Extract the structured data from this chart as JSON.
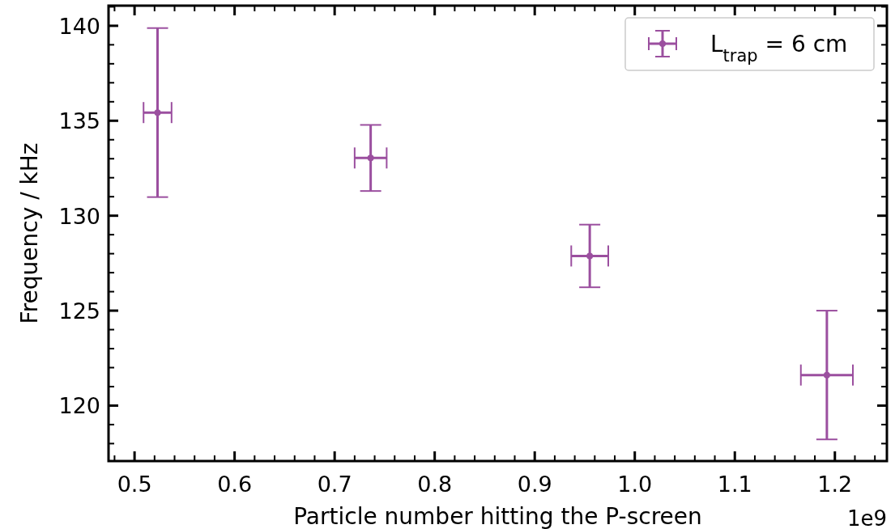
{
  "chart_data": {
    "type": "scatter",
    "xlabel": "Particle number hitting the P-screen",
    "ylabel": "Frequency / kHz",
    "annotations": [
      "1e9"
    ],
    "x": [
      0.523,
      0.736,
      0.955,
      1.192
    ],
    "series": [
      {
        "name": "L$_{trap}$ = 6 cm",
        "color": "#9b4f9f",
        "values": [
          135.43,
          133.04,
          127.88,
          121.61
        ],
        "errors": [
          4.45,
          1.74,
          1.65,
          3.39
        ],
        "xerrors": [
          0.014,
          0.016,
          0.0185,
          0.026
        ]
      }
    ],
    "xlim": [
      0.474,
      1.252
    ],
    "ylim": [
      117.08,
      141.06
    ],
    "xticks": [
      {
        "value": 0.48,
        "label": null
      },
      0.5,
      {
        "value": 0.52,
        "label": null
      },
      {
        "value": 0.54,
        "label": null
      },
      {
        "value": 0.56,
        "label": null
      },
      {
        "value": 0.58,
        "label": null
      },
      0.6,
      {
        "value": 0.62,
        "label": null
      },
      {
        "value": 0.64,
        "label": null
      },
      {
        "value": 0.66,
        "label": null
      },
      {
        "value": 0.68,
        "label": null
      },
      0.7,
      {
        "value": 0.72,
        "label": null
      },
      {
        "value": 0.74,
        "label": null
      },
      {
        "value": 0.76,
        "label": null
      },
      {
        "value": 0.78,
        "label": null
      },
      0.8,
      {
        "value": 0.82,
        "label": null
      },
      {
        "value": 0.84,
        "label": null
      },
      {
        "value": 0.86,
        "label": null
      },
      {
        "value": 0.88,
        "label": null
      },
      0.9,
      {
        "value": 0.92,
        "label": null
      },
      {
        "value": 0.94,
        "label": null
      },
      {
        "value": 0.96,
        "label": null
      },
      {
        "value": 0.98,
        "label": null
      },
      {
        "value": 1.0,
        "label": "1.0"
      },
      {
        "value": 1.02,
        "label": null
      },
      {
        "value": 1.04,
        "label": null
      },
      {
        "value": 1.06,
        "label": null
      },
      {
        "value": 1.08,
        "label": null
      },
      1.1,
      {
        "value": 1.12,
        "label": null
      },
      {
        "value": 1.14,
        "label": null
      },
      {
        "value": 1.16,
        "label": null
      },
      {
        "value": 1.18,
        "label": null
      },
      1.2,
      {
        "value": 1.22,
        "label": null
      },
      {
        "value": 1.24,
        "label": null
      }
    ],
    "yticks": [
      {
        "value": 118,
        "label": null
      },
      {
        "value": 119,
        "label": null
      },
      120,
      {
        "value": 121,
        "label": null
      },
      {
        "value": 122,
        "label": null
      },
      {
        "value": 123,
        "label": null
      },
      {
        "value": 124,
        "label": null
      },
      125,
      {
        "value": 126,
        "label": null
      },
      {
        "value": 127,
        "label": null
      },
      {
        "value": 128,
        "label": null
      },
      {
        "value": 129,
        "label": null
      },
      130,
      {
        "value": 131,
        "label": null
      },
      {
        "value": 132,
        "label": null
      },
      {
        "value": 133,
        "label": null
      },
      {
        "value": 134,
        "label": null
      },
      135,
      {
        "value": 136,
        "label": null
      },
      {
        "value": 137,
        "label": null
      },
      {
        "value": 138,
        "label": null
      },
      {
        "value": 139,
        "label": null
      },
      140,
      {
        "value": 141,
        "label": null
      }
    ],
    "legend": "top right",
    "marker": "circle",
    "grid": false
  }
}
